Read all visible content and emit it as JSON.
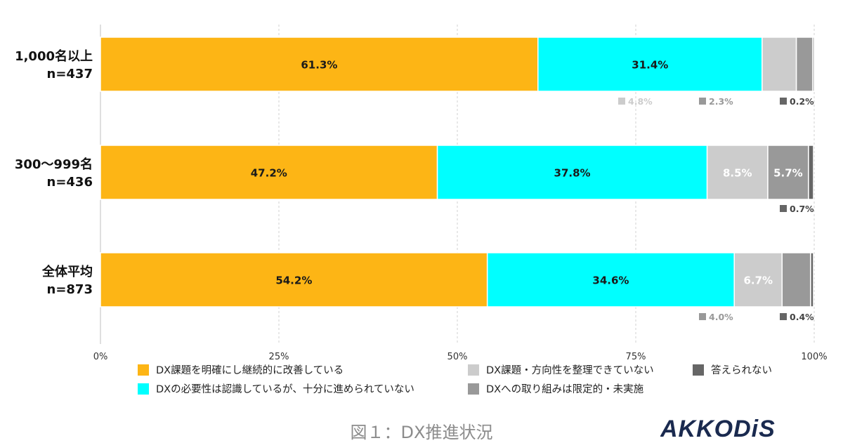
{
  "chart_data": {
    "type": "bar",
    "orientation": "horizontal",
    "stacked": true,
    "categories": [
      {
        "label": "1,000名以上",
        "n": "n=437"
      },
      {
        "label": "300〜999名",
        "n": "n=436"
      },
      {
        "label": "全体平均",
        "n": "n=873"
      }
    ],
    "series": [
      {
        "name": "DX課題を明確にし継続的に改善している",
        "color": "#FDB515",
        "values": [
          61.3,
          47.2,
          54.2
        ],
        "labels": [
          "61.3%",
          "47.2%",
          "54.2%"
        ]
      },
      {
        "name": "DXの必要性は認識しているが、十分に進められていない",
        "color": "#00FFFF",
        "values": [
          31.4,
          37.8,
          34.6
        ],
        "labels": [
          "31.4%",
          "37.8%",
          "34.6%"
        ]
      },
      {
        "name": "DX課題・方向性を整理できていない",
        "color": "#CCCCCC",
        "values": [
          4.8,
          8.5,
          6.7
        ],
        "labels": [
          "4.8%",
          "8.5%",
          "6.7%"
        ]
      },
      {
        "name": "DXへの取り組みは限定的・未実施",
        "color": "#999999",
        "values": [
          2.3,
          5.7,
          4.0
        ],
        "labels": [
          "2.3%",
          "5.7%",
          "4.0%"
        ]
      },
      {
        "name": "答えられない",
        "color": "#666666",
        "values": [
          0.2,
          0.7,
          0.4
        ],
        "labels": [
          "0.2%",
          "0.7%",
          "0.4%"
        ]
      }
    ],
    "x_ticks": [
      "0%",
      "25%",
      "50%",
      "75%",
      "100%"
    ],
    "xlim": [
      0,
      100
    ],
    "grid": "vertical dashed",
    "legend_position": "bottom"
  },
  "caption": "図１：DX推進状況",
  "logo_text": "AKKODiS"
}
